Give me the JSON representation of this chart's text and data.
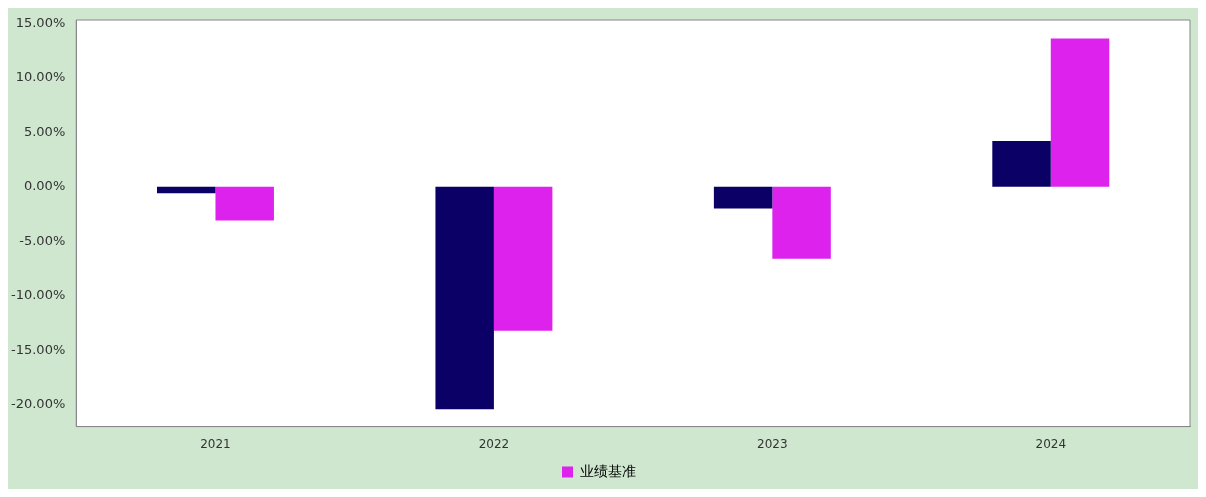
{
  "chart_data": {
    "type": "bar",
    "categories": [
      "2021",
      "2022",
      "2023",
      "2024"
    ],
    "series": [
      {
        "color": "#0a0066",
        "values": [
          -0.6,
          -20.4,
          -2.0,
          4.2
        ]
      },
      {
        "name": "业绩基准",
        "color": "#dd22ee",
        "values": [
          -3.1,
          -13.2,
          -6.6,
          13.6
        ]
      }
    ],
    "ylim": [
      -22,
      15.3
    ],
    "yticks": [
      {
        "value": -20,
        "label": "-20.00%"
      },
      {
        "value": -15,
        "label": "-15.00%"
      },
      {
        "value": -10,
        "label": "-10.00%"
      },
      {
        "value": -5,
        "label": "-5.00%"
      },
      {
        "value": 0,
        "label": "0.00%"
      },
      {
        "value": 5,
        "label": "5.00%"
      },
      {
        "value": 10,
        "label": "10.00%"
      },
      {
        "value": 15,
        "label": "15.00%"
      }
    ],
    "grid": false,
    "legend": "bottom"
  }
}
